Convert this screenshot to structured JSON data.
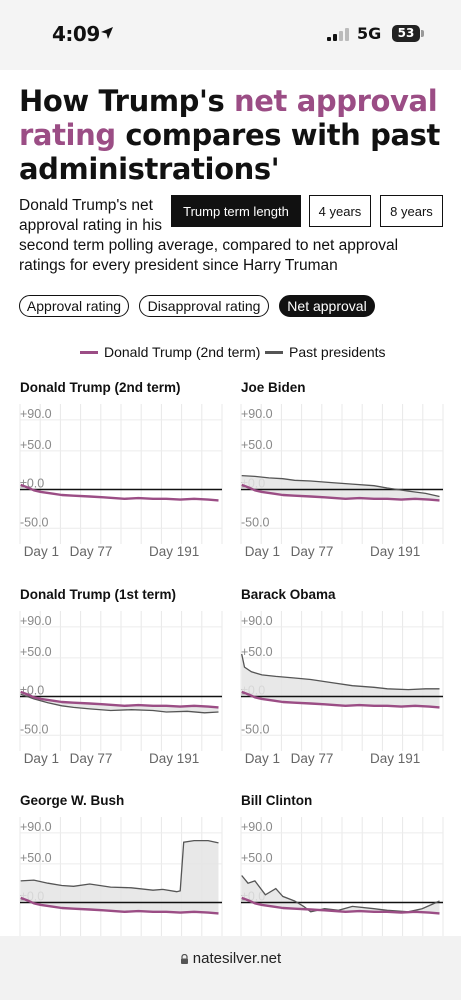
{
  "status_bar": {
    "time": "4:09",
    "network": "5G",
    "battery": "53"
  },
  "article": {
    "headline_before": "How Trump's ",
    "headline_accent": "net approval rating",
    "headline_after": " compares with past administrations'",
    "description_lines": [
      "Donald Trump's net",
      "approval rating in his",
      "second term polling average, compared to net approval",
      "ratings for every president since Harry Truman"
    ],
    "accent_color": "#9b4d85"
  },
  "controls": {
    "term_buttons": [
      {
        "label": "Trump term length",
        "active": true
      },
      {
        "label": "4 years",
        "active": false
      },
      {
        "label": "8 years",
        "active": false
      }
    ],
    "metric_buttons": [
      {
        "label": "Approval rating",
        "active": false
      },
      {
        "label": "Disapproval rating",
        "active": false
      },
      {
        "label": "Net approval",
        "active": true
      }
    ]
  },
  "legend": {
    "trump": {
      "label": "Donald Trump (2nd term)",
      "color": "#9b4d85"
    },
    "past": {
      "label": "Past presidents",
      "color": "#555555"
    }
  },
  "url": "natesilver.net",
  "chart_data": {
    "type": "line",
    "y_tick_labels": [
      "+90.0",
      "+50.0",
      "±0.0",
      "-50.0"
    ],
    "y_ticks": [
      90,
      50,
      0,
      -50
    ],
    "ylim": [
      -60,
      95
    ],
    "x_tick_labels": [
      "Day 1",
      "Day 77",
      "Day 191"
    ],
    "x_ticks": [
      1,
      77,
      191
    ],
    "xlim": [
      0,
      290
    ],
    "trump_2nd_term": {
      "name": "Donald Trump (2nd term)",
      "x": [
        1,
        10,
        20,
        30,
        45,
        60,
        77,
        100,
        120,
        150,
        170,
        191,
        210,
        230,
        250,
        270,
        285
      ],
      "y": [
        6,
        3,
        -1,
        -3,
        -5,
        -7,
        -8,
        -9,
        -10,
        -12,
        -11,
        -12,
        -12,
        -13,
        -12,
        -13,
        -14
      ]
    },
    "panels": [
      {
        "title": "Donald Trump (2nd term)",
        "past": null
      },
      {
        "title": "Joe Biden",
        "past": {
          "x": [
            1,
            20,
            40,
            60,
            77,
            100,
            130,
            160,
            191,
            210,
            240,
            265,
            285
          ],
          "y": [
            18,
            17,
            15,
            14,
            12,
            11,
            9,
            7,
            5,
            2,
            -2,
            -5,
            -9
          ]
        }
      },
      {
        "title": "Donald Trump (1st term)",
        "past": {
          "x": [
            1,
            20,
            40,
            60,
            77,
            100,
            130,
            160,
            191,
            210,
            240,
            265,
            285
          ],
          "y": [
            3,
            -3,
            -8,
            -12,
            -14,
            -16,
            -18,
            -17,
            -18,
            -20,
            -19,
            -21,
            -20
          ]
        }
      },
      {
        "title": "Barack Obama",
        "past": {
          "x": [
            1,
            5,
            15,
            30,
            50,
            77,
            100,
            130,
            160,
            191,
            210,
            240,
            265,
            285
          ],
          "y": [
            55,
            38,
            32,
            28,
            26,
            24,
            22,
            18,
            14,
            12,
            10,
            9,
            10,
            10
          ]
        }
      },
      {
        "title": "George W. Bush",
        "past": {
          "x": [
            1,
            20,
            40,
            60,
            77,
            100,
            130,
            160,
            191,
            205,
            225,
            230,
            235,
            250,
            270,
            285
          ],
          "y": [
            28,
            29,
            25,
            22,
            21,
            24,
            20,
            19,
            16,
            17,
            14,
            15,
            78,
            80,
            80,
            77
          ]
        }
      },
      {
        "title": "Bill Clinton",
        "past": {
          "x": [
            1,
            10,
            20,
            35,
            50,
            60,
            77,
            90,
            100,
            120,
            140,
            160,
            191,
            210,
            240,
            260,
            275,
            285
          ],
          "y": [
            35,
            25,
            28,
            10,
            18,
            8,
            2,
            -5,
            -12,
            -8,
            -10,
            -5,
            -8,
            -10,
            -12,
            -8,
            -2,
            2
          ]
        }
      }
    ]
  }
}
